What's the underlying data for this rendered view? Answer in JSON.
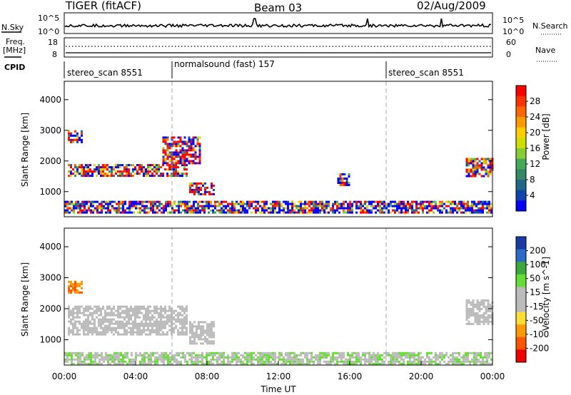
{
  "header": {
    "radar": "TIGER (fitACF)",
    "beam": "Beam 03",
    "date": "02/Aug/2009"
  },
  "status_panel": {
    "nsky_label": "N.Sky",
    "nsky_ticks": [
      "10^5",
      "10^0"
    ],
    "nsky_ticks_right": [
      "10^5",
      "10^0"
    ],
    "nsearch_label": "N.Search",
    "freq_label_line1": "Freq.",
    "freq_label_line2": "[MHz]",
    "freq_ticks": [
      "18",
      "8"
    ],
    "nave_ticks": [
      "60",
      "0"
    ],
    "nave_label": "Nave",
    "cpid_label": "CPID",
    "cpid_segments": [
      {
        "label": "stereo_scan 8551",
        "start_hour": 0,
        "end_hour": 6
      },
      {
        "label": "normalsound (fast) 157",
        "start_hour": 6,
        "end_hour": 18
      },
      {
        "label": "stereo_scan 8551",
        "start_hour": 18,
        "end_hour": 24
      }
    ]
  },
  "panels": {
    "power": {
      "ylabel": "Slant Range [km]",
      "cbar_label": "Power [dB]",
      "cbar_ticks": [
        "28",
        "24",
        "20",
        "16",
        "12",
        "8",
        "4"
      ],
      "cbar_colors": [
        "#ff0000",
        "#ff3300",
        "#ff6600",
        "#ff9900",
        "#ffcc00",
        "#ccdd00",
        "#88cc33",
        "#44aa55",
        "#338866",
        "#226688",
        "#1144aa",
        "#0000ff"
      ]
    },
    "velocity": {
      "ylabel": "Slant Range [km]",
      "cbar_label": "Velocity [m s^-1]",
      "cbar_ticks": [
        "200",
        "100",
        "50",
        "15",
        "-15",
        "-50",
        "-100",
        "-200"
      ],
      "cbar_colors": [
        "#1a3aa8",
        "#2d6ac8",
        "#3aa83a",
        "#66dd33",
        "#bbbbbb",
        "#bbbbbb",
        "#ffdd33",
        "#ff9900",
        "#ff5500",
        "#ee0000"
      ]
    }
  },
  "xaxis": {
    "label": "Time UT",
    "ticks": [
      "00:00",
      "04:00",
      "08:00",
      "12:00",
      "16:00",
      "20:00",
      "00:00"
    ]
  },
  "chart_data": [
    {
      "type": "heatmap",
      "title": "Power",
      "xlabel": "Time UT",
      "ylabel": "Slant Range [km]",
      "xlim_hours": [
        0,
        24
      ],
      "ylim": [
        180,
        4600
      ],
      "yticks": [
        1000,
        2000,
        3000,
        4000
      ],
      "colorbar_range": [
        0,
        30
      ],
      "colorbar_ticks": [
        4,
        8,
        12,
        16,
        20,
        24,
        28
      ],
      "features": [
        {
          "name": "main band",
          "start_hour": 0.2,
          "end_hour": 6.9,
          "range_km": [
            1500,
            1900
          ],
          "power_db": 20
        },
        {
          "name": "upper band",
          "start_hour": 0.2,
          "end_hour": 1.0,
          "range_km": [
            2600,
            3000
          ],
          "power_db": 16
        },
        {
          "name": "rising echo",
          "start_hour": 5.5,
          "end_hour": 7.6,
          "range_km": [
            1900,
            2800
          ],
          "power_db": 18
        },
        {
          "name": "low echo",
          "start_hour": 7.0,
          "end_hour": 8.4,
          "range_km": [
            900,
            1300
          ],
          "power_db": 22
        },
        {
          "name": "blob",
          "start_hour": 15.3,
          "end_hour": 16.0,
          "range_km": [
            1200,
            1600
          ],
          "power_db": 12
        },
        {
          "name": "late band",
          "start_hour": 22.5,
          "end_hour": 24.0,
          "range_km": [
            1500,
            2100
          ],
          "power_db": 22
        },
        {
          "name": "ground scatter",
          "start_hour": 0.0,
          "end_hour": 24.0,
          "range_km": [
            300,
            700
          ],
          "power_db": 8
        }
      ]
    },
    {
      "type": "heatmap",
      "title": "Velocity",
      "xlabel": "Time UT",
      "ylabel": "Slant Range [km]",
      "xlim_hours": [
        0,
        24
      ],
      "ylim": [
        180,
        4600
      ],
      "yticks": [
        1000,
        2000,
        3000,
        4000
      ],
      "colorbar_range": [
        -250,
        250
      ],
      "colorbar_ticks": [
        -200,
        -100,
        -50,
        -15,
        15,
        50,
        100,
        200
      ],
      "features": [
        {
          "name": "main band",
          "start_hour": 0.2,
          "end_hour": 6.9,
          "range_km": [
            1200,
            2100
          ],
          "velocity_ms": 0
        },
        {
          "name": "upper band",
          "start_hour": 0.2,
          "end_hour": 1.0,
          "range_km": [
            2500,
            2900
          ],
          "velocity_ms": -150
        },
        {
          "name": "low echo",
          "start_hour": 7.0,
          "end_hour": 8.4,
          "range_km": [
            900,
            1600
          ],
          "velocity_ms": 0
        },
        {
          "name": "late band",
          "start_hour": 22.5,
          "end_hour": 24.0,
          "range_km": [
            1500,
            2300
          ],
          "velocity_ms": 0
        },
        {
          "name": "ground scatter",
          "start_hour": 0.0,
          "end_hour": 24.0,
          "range_km": [
            200,
            600
          ],
          "velocity_ms": 40
        }
      ]
    }
  ]
}
